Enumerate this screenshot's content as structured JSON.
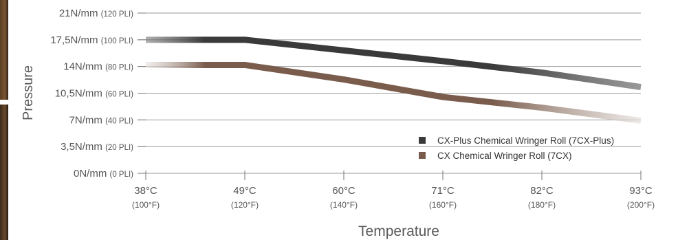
{
  "chart_data": {
    "type": "line",
    "xlabel": "Temperature",
    "ylabel": "Pressure",
    "ylim": [
      0,
      21
    ],
    "xlim": [
      38,
      93
    ],
    "grid": "horizontal",
    "legend_position": "bottom-right",
    "y_ticks": [
      {
        "value": 0,
        "main": "0N/mm",
        "sub": "(0 PLI)"
      },
      {
        "value": 3.5,
        "main": "3,5N/mm",
        "sub": "(20 PLI)"
      },
      {
        "value": 7,
        "main": "7N/mm",
        "sub": "(40 PLI)"
      },
      {
        "value": 10.5,
        "main": "10,5N/mm",
        "sub": "(60 PLI)"
      },
      {
        "value": 14,
        "main": "14N/mm",
        "sub": "(80 PLI)"
      },
      {
        "value": 17.5,
        "main": "17,5N/mm",
        "sub": "(100 PLI)"
      },
      {
        "value": 21,
        "main": "21N/mm",
        "sub": "(120 PLI)"
      }
    ],
    "x_ticks": [
      {
        "value": 38,
        "main": "38°C",
        "sub": "(100°F)"
      },
      {
        "value": 49,
        "main": "49°C",
        "sub": "(120°F)"
      },
      {
        "value": 60,
        "main": "60°C",
        "sub": "(140°F)"
      },
      {
        "value": 71,
        "main": "71°C",
        "sub": "(160°F)"
      },
      {
        "value": 82,
        "main": "82°C",
        "sub": "(180°F)"
      },
      {
        "value": 93,
        "main": "93°C",
        "sub": "(200°F)"
      }
    ],
    "series": [
      {
        "name": "CX-Plus Chemical Wringer Roll (7CX-Plus)",
        "color": "#3a3a3a",
        "fade_color": "#6d6d6d",
        "x": [
          38,
          49,
          71,
          82,
          93
        ],
        "y": [
          17.5,
          17.5,
          14.7,
          13.2,
          11.3
        ]
      },
      {
        "name": "CX Chemical Wringer Roll (7CX)",
        "color": "#7a5c4c",
        "fade_color": "#e6e0dc",
        "x": [
          38,
          49,
          60,
          71,
          82,
          93
        ],
        "y": [
          14.2,
          14.2,
          12.3,
          10.0,
          8.6,
          6.9
        ]
      }
    ]
  }
}
